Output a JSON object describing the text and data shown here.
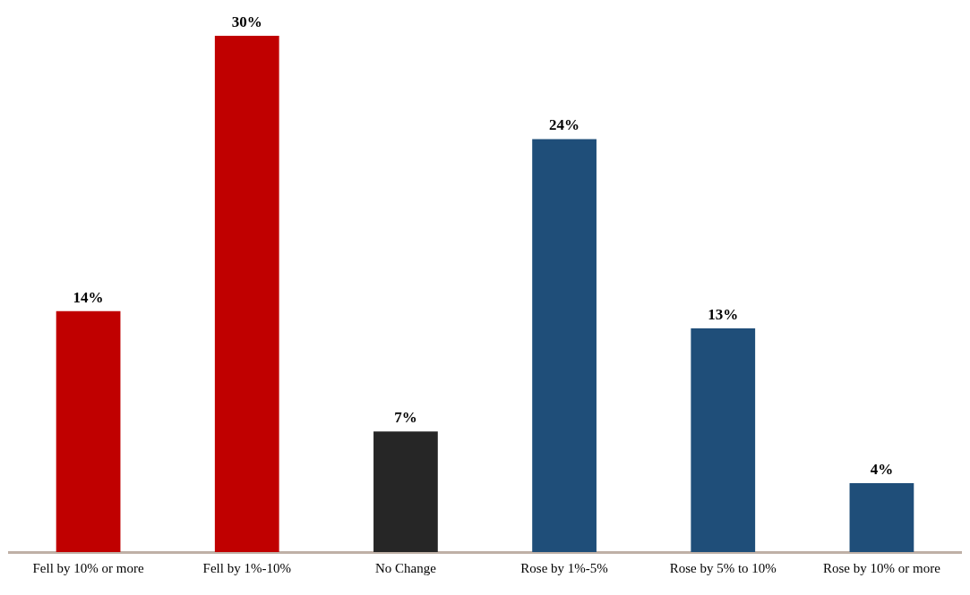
{
  "chart_data": {
    "type": "bar",
    "categories": [
      "Fell by 10% or more",
      "Fell by 1%-10%",
      "No Change",
      "Rose by 1%-5%",
      "Rose by 5% to 10%",
      "Rose by 10% or more"
    ],
    "values": [
      14,
      30,
      7,
      24,
      13,
      4
    ],
    "colors": [
      "#c00000",
      "#c00000",
      "#262626",
      "#1f4e79",
      "#1f4e79",
      "#1f4e79"
    ],
    "value_labels": [
      "14%",
      "30%",
      "7%",
      "24%",
      "13%",
      "4%"
    ],
    "grid": false,
    "legend": false
  }
}
